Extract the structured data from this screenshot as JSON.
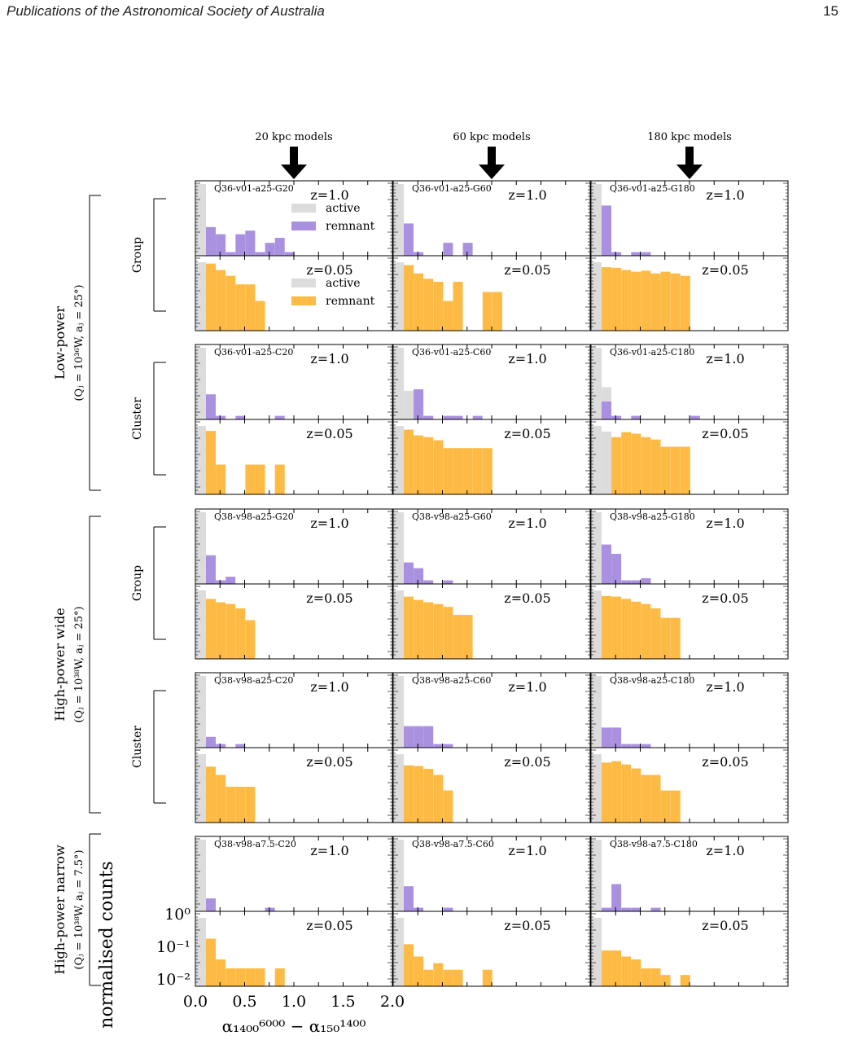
{
  "header": {
    "journal": "Publications of the Astronomical Society of Australia",
    "page_number": "15"
  },
  "chart_data": {
    "type": "bar",
    "bins": [
      0.0,
      0.1,
      0.2,
      0.3,
      0.4,
      0.5,
      0.6,
      0.7,
      0.8,
      0.9
    ],
    "x_ticks": [
      "0.0",
      "0.5",
      "1.0",
      "1.5",
      "2.0"
    ],
    "xlim": [
      0.0,
      2.0
    ],
    "y_ticks": [
      "10⁰",
      "10⁻¹",
      "10⁻²"
    ],
    "y_scale": "log",
    "ylabel": "normalised counts",
    "xlabel": "α₁₄₀₀⁶⁰⁰⁰ − α₁₅₀¹⁴⁰⁰",
    "column_headers": [
      "20 kpc models",
      "60 kpc models",
      "180 kpc models"
    ],
    "regime_labels": [
      {
        "line1": "Low-power",
        "line2": "(Qⱼ = 10³⁶W, aⱼ = 25°)"
      },
      {
        "line1": "High-power wide",
        "line2": "(Qⱼ = 10³⁸W, aⱼ = 25°)"
      },
      {
        "line1": "High-power narrow",
        "line2": "(Qⱼ = 10³⁸W, aⱼ = 7.5°)"
      }
    ],
    "env_labels": [
      "Group",
      "Cluster",
      "Group",
      "Cluster"
    ],
    "redshift_labels": {
      "high": "z=1.0",
      "low": "z=0.05"
    },
    "legend_entries": {
      "active": "active",
      "remnant": "remnant"
    },
    "colors": {
      "active": "#dcdcdc",
      "remnant_high_z": "#a991e0",
      "remnant_low_z": "#fdbb45"
    },
    "panels": [
      [
        {
          "model": "Q36-v01-a25-G20",
          "high_z": {
            "active": [
              1.0,
              0,
              0,
              0,
              0,
              0,
              0,
              0,
              0,
              0
            ],
            "remnant": [
              0.4,
              0.3,
              0.05,
              0.3,
              0.35,
              0.05,
              0.18,
              0.25,
              0.05,
              0
            ]
          },
          "low_z": {
            "active": [
              1.0,
              0,
              0,
              0,
              0,
              0,
              0,
              0,
              0,
              0
            ],
            "remnant": [
              0.9,
              0.55,
              0.35,
              0.18,
              0.18,
              0.05,
              0,
              0,
              0,
              0
            ]
          }
        },
        {
          "model": "Q36-v01-a25-G60",
          "high_z": {
            "active": [
              1.0,
              0,
              0,
              0,
              0,
              0,
              0,
              0,
              0,
              0
            ],
            "remnant": [
              0.45,
              0.05,
              0,
              0,
              0.18,
              0,
              0.18,
              0,
              0,
              0
            ]
          },
          "low_z": {
            "active": [
              1.0,
              0,
              0,
              0,
              0,
              0,
              0,
              0,
              0,
              0
            ],
            "remnant": [
              0.8,
              0.42,
              0.28,
              0.22,
              0.05,
              0.22,
              0,
              0,
              0.1,
              0.1
            ]
          }
        },
        {
          "model": "Q36-v01-a25-G180",
          "high_z": {
            "active": [
              1.0,
              0,
              0,
              0,
              0,
              0,
              0,
              0,
              0,
              0
            ],
            "remnant": [
              0.7,
              0.05,
              0,
              0.05,
              0.05,
              0,
              0,
              0,
              0,
              0
            ]
          },
          "low_z": {
            "active": [
              1.0,
              0,
              0,
              0,
              0,
              0,
              0,
              0,
              0,
              0
            ],
            "remnant": [
              0.68,
              0.65,
              0.55,
              0.48,
              0.52,
              0.42,
              0.48,
              0.42,
              0.35,
              0
            ]
          }
        }
      ],
      [
        {
          "model": "Q36-v01-a25-C20",
          "high_z": {
            "active": [
              1.0,
              0,
              0,
              0,
              0,
              0,
              0,
              0,
              0,
              0
            ],
            "remnant": [
              0.35,
              0.05,
              0,
              0.05,
              0,
              0,
              0,
              0.05,
              0,
              0
            ]
          },
          "low_z": {
            "active": [
              1.0,
              0,
              0,
              0,
              0,
              0,
              0,
              0,
              0,
              0
            ],
            "remnant": [
              0.68,
              0.05,
              0,
              0,
              0.05,
              0.05,
              0,
              0.05,
              0,
              0
            ]
          }
        },
        {
          "model": "Q36-v01-a25-C60",
          "high_z": {
            "active": [
              1.0,
              0.4,
              0,
              0,
              0,
              0,
              0,
              0,
              0,
              0
            ],
            "remnant": [
              0,
              0.42,
              0.05,
              0,
              0.05,
              0.05,
              0,
              0.05,
              0,
              0
            ]
          },
          "low_z": {
            "active": [
              1.0,
              0,
              0,
              0,
              0,
              0,
              0,
              0,
              0,
              0
            ],
            "remnant": [
              0.75,
              0.48,
              0.42,
              0.33,
              0.18,
              0.18,
              0.18,
              0.18,
              0.18,
              0
            ]
          }
        },
        {
          "model": "Q36-v01-a25-C180",
          "high_z": {
            "active": [
              1.0,
              0.45,
              0,
              0,
              0,
              0,
              0,
              0,
              0,
              0
            ],
            "remnant": [
              0.25,
              0.05,
              0,
              0.05,
              0,
              0,
              0,
              0,
              0,
              0.05
            ]
          },
          "low_z": {
            "active": [
              1.0,
              0.65,
              0,
              0,
              0,
              0,
              0,
              0,
              0,
              0
            ],
            "remnant": [
              0,
              0.42,
              0.62,
              0.55,
              0.42,
              0.35,
              0.2,
              0.2,
              0.2,
              0
            ]
          }
        }
      ],
      [
        {
          "model": "Q38-v98-a25-G20",
          "high_z": {
            "active": [
              1.0,
              0,
              0,
              0,
              0,
              0,
              0,
              0,
              0,
              0
            ],
            "remnant": [
              0.4,
              0.05,
              0.1,
              0,
              0,
              0,
              0,
              0,
              0,
              0
            ]
          },
          "low_z": {
            "active": [
              1.0,
              0,
              0,
              0,
              0,
              0,
              0,
              0,
              0,
              0
            ],
            "remnant": [
              0.52,
              0.4,
              0.35,
              0.25,
              0.1,
              0,
              0,
              0,
              0,
              0
            ]
          }
        },
        {
          "model": "Q38-v98-a25-G60",
          "high_z": {
            "active": [
              1.0,
              0,
              0,
              0,
              0,
              0,
              0,
              0,
              0,
              0
            ],
            "remnant": [
              0.3,
              0.22,
              0.05,
              0,
              0.05,
              0,
              0,
              0,
              0,
              0
            ]
          },
          "low_z": {
            "active": [
              1.0,
              0,
              0,
              0,
              0,
              0,
              0,
              0,
              0,
              0
            ],
            "remnant": [
              0.62,
              0.48,
              0.4,
              0.35,
              0.28,
              0.15,
              0.15,
              0,
              0,
              0
            ]
          }
        },
        {
          "model": "Q38-v98-a25-G180",
          "high_z": {
            "active": [
              1.0,
              0,
              0,
              0,
              0,
              0,
              0,
              0,
              0,
              0
            ],
            "remnant": [
              0.55,
              0.42,
              0.05,
              0.05,
              0.08,
              0,
              0,
              0,
              0,
              0
            ]
          },
          "low_z": {
            "active": [
              1.0,
              0,
              0,
              0,
              0,
              0,
              0,
              0,
              0,
              0
            ],
            "remnant": [
              0.65,
              0.62,
              0.52,
              0.42,
              0.35,
              0.25,
              0.12,
              0.12,
              0,
              0
            ]
          }
        }
      ],
      [
        {
          "model": "Q38-v98-a25-C20",
          "high_z": {
            "active": [
              1.0,
              0,
              0,
              0,
              0,
              0,
              0,
              0,
              0,
              0
            ],
            "remnant": [
              0.15,
              0.05,
              0,
              0.05,
              0,
              0,
              0,
              0,
              0,
              0
            ]
          },
          "low_z": {
            "active": [
              1.0,
              0,
              0,
              0,
              0,
              0,
              0,
              0,
              0,
              0
            ],
            "remnant": [
              0.38,
              0.2,
              0.08,
              0.08,
              0.08,
              0,
              0,
              0,
              0,
              0
            ]
          }
        },
        {
          "model": "Q38-v98-a25-C60",
          "high_z": {
            "active": [
              1.0,
              0,
              0,
              0,
              0,
              0,
              0,
              0,
              0,
              0
            ],
            "remnant": [
              0.3,
              0.3,
              0.3,
              0.05,
              0.05,
              0,
              0,
              0,
              0,
              0
            ]
          },
          "low_z": {
            "active": [
              1.0,
              0,
              0,
              0,
              0,
              0,
              0,
              0,
              0,
              0
            ],
            "remnant": [
              0.42,
              0.4,
              0.32,
              0.2,
              0.06,
              0,
              0,
              0,
              0,
              0
            ]
          }
        },
        {
          "model": "Q38-v98-a25-C180",
          "high_z": {
            "active": [
              1.0,
              0,
              0,
              0,
              0,
              0,
              0,
              0,
              0,
              0
            ],
            "remnant": [
              0.28,
              0.28,
              0.05,
              0.05,
              0.05,
              0,
              0,
              0,
              0,
              0
            ]
          },
          "low_z": {
            "active": [
              1.0,
              0,
              0,
              0,
              0,
              0,
              0,
              0,
              0,
              0
            ],
            "remnant": [
              0.52,
              0.58,
              0.45,
              0.33,
              0.2,
              0.2,
              0.06,
              0.06,
              0,
              0
            ]
          }
        }
      ],
      [
        {
          "model": "Q38-v98-a7.5-C20",
          "high_z": {
            "active": [
              1.0,
              0,
              0,
              0,
              0,
              0,
              0,
              0,
              0,
              0
            ],
            "remnant": [
              0.18,
              0,
              0,
              0,
              0,
              0,
              0.05,
              0,
              0,
              0
            ]
          },
          "low_z": {
            "active": [
              1.0,
              0,
              0,
              0,
              0,
              0,
              0,
              0,
              0,
              0
            ],
            "remnant": [
              0.2,
              0.04,
              0.02,
              0.02,
              0.02,
              0.02,
              0,
              0.02,
              0,
              0
            ]
          }
        },
        {
          "model": "Q38-v98-a7.5-C60",
          "high_z": {
            "active": [
              1.0,
              0,
              0,
              0,
              0,
              0,
              0,
              0,
              0,
              0
            ],
            "remnant": [
              0.35,
              0.05,
              0,
              0,
              0.05,
              0,
              0,
              0,
              0,
              0
            ]
          },
          "low_z": {
            "active": [
              1.0,
              0,
              0,
              0,
              0,
              0,
              0,
              0,
              0,
              0
            ],
            "remnant": [
              0.13,
              0.05,
              0.018,
              0.03,
              0.018,
              0.018,
              0,
              0,
              0.018,
              0
            ]
          }
        },
        {
          "model": "Q38-v98-a7.5-C180",
          "high_z": {
            "active": [
              1.0,
              0,
              0,
              0,
              0,
              0,
              0,
              0,
              0,
              0
            ],
            "remnant": [
              0.05,
              0.38,
              0.05,
              0.05,
              0,
              0.05,
              0,
              0,
              0,
              0
            ]
          },
          "low_z": {
            "active": [
              1.0,
              0,
              0,
              0,
              0,
              0,
              0,
              0,
              0,
              0
            ],
            "remnant": [
              0.08,
              0.08,
              0.05,
              0.04,
              0.02,
              0.02,
              0.012,
              0,
              0.012,
              0
            ]
          }
        }
      ]
    ]
  }
}
